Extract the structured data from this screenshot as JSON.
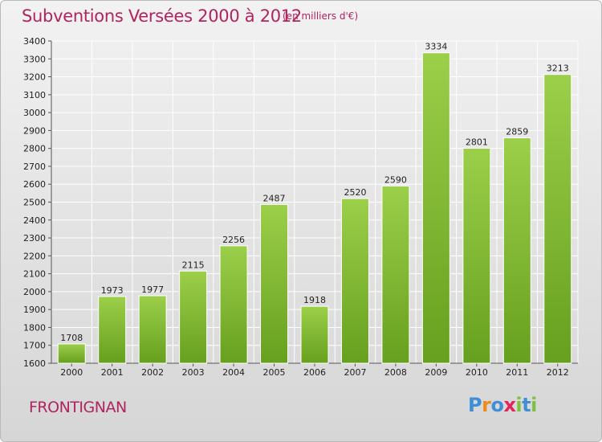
{
  "title": "Subventions Versées 2000 à 2012",
  "subtitle": "(en milliers d'€)",
  "place": "FRONTIGNAN",
  "logo": {
    "p": "P",
    "r": "r",
    "o": "o",
    "x": "x",
    "i1": "i",
    "t": "t",
    "i2": "i"
  },
  "colors": {
    "title": "#b0245f",
    "bar_top": "#9ccf4a",
    "bar_bottom": "#66a01e",
    "grid": "#ffffff"
  },
  "chart_data": {
    "type": "bar",
    "categories": [
      "2000",
      "2001",
      "2002",
      "2003",
      "2004",
      "2005",
      "2006",
      "2007",
      "2008",
      "2009",
      "2010",
      "2011",
      "2012"
    ],
    "values": [
      1708,
      1973,
      1977,
      2115,
      2256,
      2487,
      1918,
      2520,
      2590,
      3334,
      2801,
      2859,
      3213
    ],
    "yticks": [
      1600,
      1700,
      1800,
      1900,
      2000,
      2100,
      2200,
      2300,
      2400,
      2500,
      2600,
      2700,
      2800,
      2900,
      3000,
      3100,
      3200,
      3300,
      3400
    ],
    "ylim": [
      1600,
      3400
    ],
    "grid": true,
    "xlabel": "",
    "ylabel": ""
  }
}
